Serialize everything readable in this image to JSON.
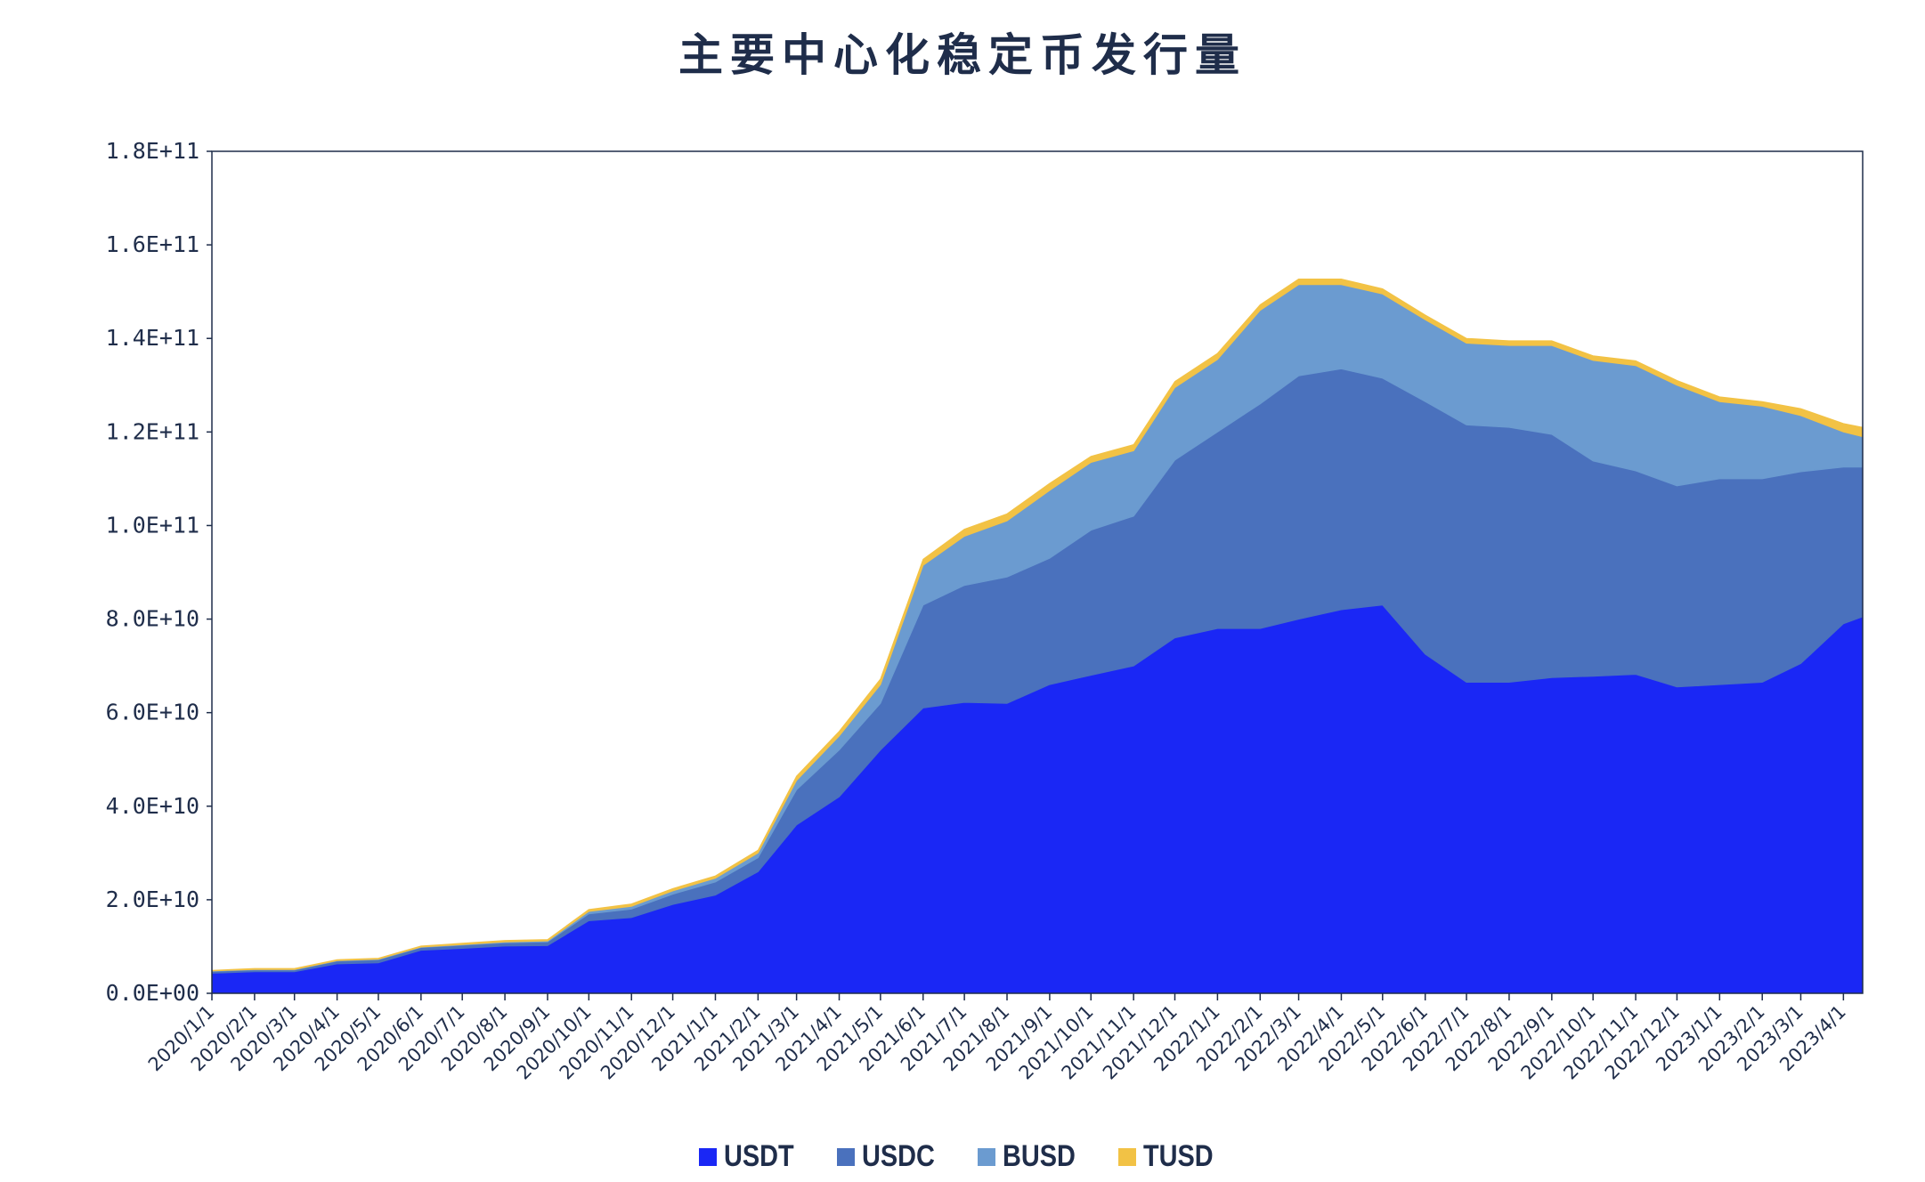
{
  "chart_data": {
    "type": "area",
    "stacked": true,
    "title": "主要中心化稳定币发行量",
    "xlabel": "",
    "ylabel": "",
    "ylim": [
      0,
      180000000000
    ],
    "y_ticks": [
      "0.0E+00",
      "2.0E+10",
      "4.0E+10",
      "6.0E+10",
      "8.0E+10",
      "1.0E+11",
      "1.2E+11",
      "1.4E+11",
      "1.6E+11",
      "1.8E+11"
    ],
    "x_ticks": [
      "2020/1/1",
      "2020/2/1",
      "2020/3/1",
      "2020/4/1",
      "2020/5/1",
      "2020/6/1",
      "2020/7/1",
      "2020/8/1",
      "2020/9/1",
      "2020/10/1",
      "2020/11/1",
      "2020/12/1",
      "2021/1/1",
      "2021/2/1",
      "2021/3/1",
      "2021/4/1",
      "2021/5/1",
      "2021/6/1",
      "2021/7/1",
      "2021/8/1",
      "2021/9/1",
      "2021/10/1",
      "2021/11/1",
      "2021/12/1",
      "2022/1/1",
      "2022/2/1",
      "2022/3/1",
      "2022/4/1",
      "2022/5/1",
      "2022/6/1",
      "2022/7/1",
      "2022/8/1",
      "2022/9/1",
      "2022/10/1",
      "2022/11/1",
      "2022/12/1",
      "2023/1/1",
      "2023/2/1",
      "2023/3/1",
      "2023/4/1"
    ],
    "x": [
      "2020/1/1",
      "2020/2/1",
      "2020/3/1",
      "2020/4/1",
      "2020/5/1",
      "2020/6/1",
      "2020/7/1",
      "2020/8/1",
      "2020/9/1",
      "2020/10/1",
      "2020/11/1",
      "2020/12/1",
      "2021/1/1",
      "2021/2/1",
      "2021/3/1",
      "2021/4/1",
      "2021/5/1",
      "2021/6/1",
      "2021/7/1",
      "2021/8/1",
      "2021/9/1",
      "2021/10/1",
      "2021/11/1",
      "2021/12/1",
      "2022/1/1",
      "2022/2/1",
      "2022/3/1",
      "2022/4/1",
      "2022/5/1",
      "2022/6/1",
      "2022/7/1",
      "2022/8/1",
      "2022/9/1",
      "2022/10/1",
      "2022/11/1",
      "2022/12/1",
      "2023/1/1",
      "2023/2/1",
      "2023/3/1",
      "2023/4/1",
      "2023/4/15"
    ],
    "series": [
      {
        "name": "USDT",
        "color": "#1a27f5",
        "values": [
          4300000000.0,
          4600000000.0,
          4600000000.0,
          6300000000.0,
          6500000000.0,
          9200000000.0,
          9600000000.0,
          10100000000.0,
          10200000000.0,
          15500000000.0,
          16200000000.0,
          19000000000.0,
          21000000000.0,
          26000000000.0,
          36000000000.0,
          42000000000.0,
          52000000000.0,
          61000000000.0,
          62200000000.0,
          62000000000.0,
          66000000000.0,
          68000000000.0,
          70000000000.0,
          76000000000.0,
          78000000000.0,
          78000000000.0,
          80000000000.0,
          82000000000.0,
          83000000000.0,
          72500000000.0,
          66500000000.0,
          66500000000.0,
          67500000000.0,
          67800000000.0,
          68200000000.0,
          65500000000.0,
          66000000000.0,
          66500000000.0,
          70500000000.0,
          79000000000.0,
          80500000000.0
        ]
      },
      {
        "name": "USDC",
        "color": "#4a71bd",
        "values": [
          400000000.0,
          400000000.0,
          400000000.0,
          600000000.0,
          700000000.0,
          600000000.0,
          700000000.0,
          700000000.0,
          800000000.0,
          1500000000.0,
          1800000000.0,
          2200000000.0,
          2800000000.0,
          3000000000.0,
          7500000000.0,
          10000000000.0,
          10000000000.0,
          22000000000.0,
          25000000000.0,
          27000000000.0,
          27000000000.0,
          31000000000.0,
          32000000000.0,
          38000000000.0,
          42000000000.0,
          48000000000.0,
          52000000000.0,
          51500000000.0,
          48500000000.0,
          54000000000.0,
          55000000000.0,
          54500000000.0,
          52000000000.0,
          46000000000.0,
          43500000000.0,
          43000000000.0,
          44000000000.0,
          43500000000.0,
          41000000000.0,
          33500000000.0,
          32000000000.0
        ]
      },
      {
        "name": "BUSD",
        "color": "#6b9bd0",
        "values": [
          100000000.0,
          100000000.0,
          100000000.0,
          100000000.0,
          100000000.0,
          100000000.0,
          100000000.0,
          200000000.0,
          200000000.0,
          500000000.0,
          600000000.0,
          700000000.0,
          800000000.0,
          1000000000.0,
          2000000000.0,
          3000000000.0,
          4000000000.0,
          8500000000.0,
          10500000000.0,
          12000000000.0,
          14500000000.0,
          14500000000.0,
          14000000000.0,
          15500000000.0,
          15500000000.0,
          20000000000.0,
          19500000000.0,
          18000000000.0,
          18000000000.0,
          17500000000.0,
          17500000000.0,
          17500000000.0,
          19000000000.0,
          21500000000.0,
          22500000000.0,
          21500000000.0,
          16500000000.0,
          15500000000.0,
          12000000000.0,
          7500000000.0,
          6500000000.0
        ]
      },
      {
        "name": "TUSD",
        "color": "#f2c245",
        "values": [
          100000000.0,
          200000000.0,
          200000000.0,
          200000000.0,
          200000000.0,
          200000000.0,
          300000000.0,
          300000000.0,
          300000000.0,
          400000000.0,
          500000000.0,
          500000000.0,
          500000000.0,
          600000000.0,
          900000000.0,
          1000000000.0,
          1200000000.0,
          1300000000.0,
          1500000000.0,
          1500000000.0,
          1500000000.0,
          1300000000.0,
          1300000000.0,
          1300000000.0,
          1300000000.0,
          1200000000.0,
          1200000000.0,
          1200000000.0,
          1100000000.0,
          1000000000.0,
          1000000000.0,
          1000000000.0,
          1000000000.0,
          1000000000.0,
          1000000000.0,
          1000000000.0,
          1000000000.0,
          1000000000.0,
          1500000000.0,
          1800000000.0,
          2000000000.0
        ]
      }
    ],
    "grid": false,
    "legend": "bottom"
  }
}
